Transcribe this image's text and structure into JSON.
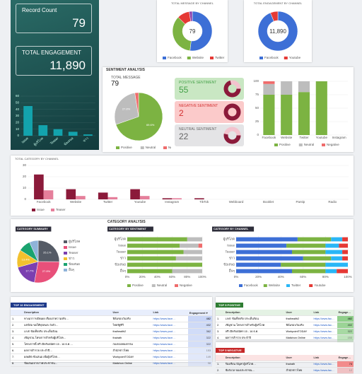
{
  "dashboard": {
    "record_count": {
      "label": "Record Count",
      "value": "79"
    },
    "total_engagement": {
      "label": "TOTAL ENGAGEMENT",
      "value": "11,890"
    },
    "sentiment_section": "SENTIMENT ANALYSIS",
    "category_section": "CATEGORY ANALYSIS",
    "total_message": {
      "label": "TOTAL MESSAGE",
      "value": "79"
    },
    "sentiment_cards": [
      {
        "label": "POSITIVE SENTIMENT",
        "value": "55"
      },
      {
        "label": "NEGATIVE SENTIMENT",
        "value": "2"
      },
      {
        "label": "NEUTRAL SENTIMENT",
        "value": "22"
      }
    ]
  },
  "chart_data": [
    {
      "type": "bar",
      "categories": [
        "Issue",
        "ผู้บริโภค",
        "Teaser",
        "ข้อเสนอ",
        "ข่าว"
      ],
      "values": [
        45,
        16,
        10,
        6,
        2
      ],
      "color": "#13a3ad",
      "ylim": [
        0,
        60
      ],
      "yticks": [
        0,
        10,
        20,
        30,
        40,
        50,
        60
      ],
      "grid": true
    },
    {
      "type": "donut",
      "title": "TOTAL MESSAGE BY CHANNEL",
      "categories": [
        "Facebook",
        "Website",
        "Twitter",
        "Youtube"
      ],
      "values": [
        41,
        28,
        8,
        2
      ],
      "colors": [
        "#3d6fd6",
        "#7cb342",
        "#e53935",
        "#8e44ad"
      ],
      "center_label": "79"
    },
    {
      "type": "donut",
      "title": "TOTAL ENGAGEMENT BY CHANNEL",
      "categories": [
        "Facebook",
        "Youtube"
      ],
      "values": [
        11160,
        730
      ],
      "colors": [
        "#3d6fd6",
        "#e53935"
      ],
      "center_label": "11,890"
    },
    {
      "type": "pie",
      "categories": [
        "Positive",
        "Neutral",
        "Negative"
      ],
      "values": [
        69.6,
        27.8,
        2.5
      ],
      "value_labels": [
        "69.6%",
        "27.8%",
        null
      ],
      "colors": [
        "#7cb342",
        "#bdbdbd",
        "#ef6c6c"
      ]
    },
    {
      "type": "bar",
      "stacked": true,
      "categories": [
        "Facebook",
        "Website",
        "Twitter",
        "Youtube",
        "Instagram"
      ],
      "series": [
        {
          "name": "Positive",
          "color": "#7cb342",
          "values": [
            75,
            75,
            80,
            100,
            0
          ]
        },
        {
          "name": "Neutral",
          "color": "#bdbdbd",
          "values": [
            20,
            25,
            20,
            0,
            0
          ]
        },
        {
          "name": "Negative",
          "color": "#ef6c6c",
          "values": [
            5,
            0,
            0,
            0,
            0
          ]
        }
      ],
      "ylim": [
        0,
        100
      ],
      "yticks": [
        0,
        25,
        50,
        75,
        100
      ],
      "grid": true
    },
    {
      "type": "bar",
      "title": "TOTAL CATEGORY BY CHANNEL",
      "categories": [
        "Facebook",
        "Website",
        "Twitter",
        "Youtube",
        "Instagram",
        "TikTok",
        "Webboard",
        "Booklet",
        "Pantip",
        "Radio"
      ],
      "series": [
        {
          "name": "Issue",
          "color": "#8b1a3a",
          "values": [
            22,
            9,
            6,
            9,
            1,
            1,
            0,
            0,
            0,
            0
          ]
        },
        {
          "name": "Teaser",
          "color": "#e57f9b",
          "values": [
            8,
            3,
            2,
            3,
            1,
            0,
            0,
            0,
            0,
            0
          ]
        }
      ],
      "ylim": [
        0,
        30
      ],
      "yticks": [
        0,
        10,
        20,
        30
      ],
      "grid": true
    },
    {
      "type": "pie",
      "title": "CATEGORY SUMMARY",
      "legend": "right",
      "categories": [
        "ผู้บริโภค",
        "Issue",
        "Teaser",
        "ข่าว",
        "ข้อเสนอ",
        "อื่นๆ"
      ],
      "values": [
        25.1,
        27.8,
        17.7,
        13.4,
        9.3,
        6.7
      ],
      "value_labels": [
        "25.1%",
        "27.8%",
        "17.7%",
        "13.4%",
        null,
        null
      ],
      "colors": [
        "#555b66",
        "#e8507a",
        "#7b3fb0",
        "#f2c12e",
        "#1aa36f",
        "#8fb3d9"
      ]
    },
    {
      "type": "bar",
      "title": "CATEGORY BY SENTIMENT",
      "orientation": "horizontal",
      "stacked": true,
      "categories": [
        "ผู้บริโภค",
        "Issue",
        "Teaser",
        "ข่าว",
        "ข้อเสนอ",
        "อื่นๆ"
      ],
      "series": [
        {
          "name": "Positive",
          "color": "#7cb342",
          "values": [
            80,
            70,
            75,
            65,
            100,
            60
          ]
        },
        {
          "name": "Neutral",
          "color": "#bdbdbd",
          "values": [
            20,
            25,
            25,
            35,
            0,
            40
          ]
        },
        {
          "name": "Negative",
          "color": "#ef6c6c",
          "values": [
            0,
            5,
            0,
            0,
            0,
            0
          ]
        }
      ],
      "xlim": [
        0,
        100
      ],
      "xticks": [
        {
          "value": 0,
          "label": "0%"
        },
        {
          "value": 20,
          "label": "20%"
        },
        {
          "value": 40,
          "label": "40%"
        },
        {
          "value": 60,
          "label": "60%"
        },
        {
          "value": 80,
          "label": "80%"
        },
        {
          "value": 100,
          "label": "100%"
        }
      ],
      "grid": true
    },
    {
      "type": "bar",
      "title": "CATEGORY BY CHANNEL",
      "orientation": "horizontal",
      "stacked": true,
      "categories": [
        "ผู้บริโภค",
        "Issue",
        "Teaser",
        "ข่าว",
        "ข้อเสนอ",
        "อื่นๆ"
      ],
      "series": [
        {
          "name": "Facebook",
          "color": "#3d6fd6",
          "values": [
            55,
            45,
            50,
            60,
            40,
            50
          ]
        },
        {
          "name": "Website",
          "color": "#7cb342",
          "values": [
            30,
            35,
            30,
            25,
            40,
            30
          ]
        },
        {
          "name": "Twitter",
          "color": "#29b6f6",
          "values": [
            10,
            12,
            15,
            10,
            20,
            10
          ]
        },
        {
          "name": "Youtube",
          "color": "#e53935",
          "values": [
            5,
            8,
            5,
            5,
            0,
            10
          ]
        }
      ],
      "xlim": [
        0,
        100
      ],
      "xticks": [
        {
          "value": 0,
          "label": "0%"
        },
        {
          "value": 20,
          "label": "20%"
        },
        {
          "value": 40,
          "label": "40%"
        },
        {
          "value": 60,
          "label": "60%"
        },
        {
          "value": 80,
          "label": "80%"
        },
        {
          "value": 100,
          "label": "100%"
        }
      ],
      "grid": true
    }
  ],
  "tables": [
    {
      "title": "TOP 10 ENGAGEMENT",
      "columns": [
        "",
        "Description",
        "User",
        "Link",
        "Engagement ▾"
      ],
      "rows": [
        [
          "1.",
          "ทางมาการเปิดเผย เรื่องเล่าความจริง…",
          "ฟิล์มรอบวันจริง",
          "https://www.face…",
          482
        ],
        [
          "2.",
          "แชร์ต่อ ขอให้ทุกคนระวังตัว…",
          "ไทยรัฐทีวี",
          "https://www.face…",
          402
        ],
        [
          "3.",
          "LIVE ข้อเท็จจริง ประเด็นร้อน",
          "thaihealth2",
          "https://www.yout…",
          362
        ],
        [
          "4.",
          "เชิญชวน โครงการสำหรับผู้บริโภค…",
          "thairath",
          "https://www.face…",
          322
        ],
        [
          "5.",
          "โครงการนี้ ฟรี เปิดรับสมัคร 15 - 16 ธ.ค.…",
          "กองกองทองกรรม",
          "https://www.face…",
          322
        ],
        [
          "6.",
          "ผลการสำรวจ ประจำปี…",
          "สำนักข่าวไทย",
          "https://www.face…",
          153
        ],
        [
          "7.",
          "ผลผลิต ข้อเสนอ เพื่อผู้บริโภค…",
          "WorkpointTODAY",
          "https://www.face…",
          149
        ],
        [
          "8.",
          "ข้อเสนอจากภาคประชาชน…",
          "Matichon Online",
          "https://www.face…",
          98
        ]
      ]
    },
    {
      "title": "TOP 5 POSITIVE",
      "columns": [
        "",
        "Description",
        "User",
        "Link",
        "Engagement"
      ],
      "rows": [
        [
          "1.",
          "LIVE ข้อเท็จจริง ประเด็นร้อน",
          "thaihealth2",
          "https://www.face…",
          482
        ],
        [
          "2.",
          "เชิญชวน โครงการสำหรับผู้บริโภค",
          "ฟิล์มรอบวันจริง",
          "https://www.face…",
          402
        ],
        [
          "3.",
          "ฟรี เปิดรับสมัคร 15 - 16 ธ.ค.",
          "WorkpointTODAY",
          "https://www.face…",
          322
        ],
        [
          "4.",
          "ผลการสำรวจ ประจำปี",
          "Matichon Online",
          "https://www.face…",
          153
        ],
        [
          "5.",
          "ข้อเสนอจากภาคประชาชน",
          "ไทยรัฐทีวี",
          "https://www.face…",
          98
        ]
      ]
    },
    {
      "title": "TOP 5 NEGATIVE",
      "columns": [
        "",
        "Description",
        "User",
        "Link",
        "Engagement"
      ],
      "rows": [
        [
          "1.",
          "ร้องเรียน ปัญหาผู้บริโภค…",
          "thairath",
          "https://www.face…",
          74
        ],
        [
          "2.",
          "ข้อกังวล ของประชาชน…",
          "สำนักข่าวไทย",
          "https://www.face…",
          12
        ]
      ]
    }
  ]
}
